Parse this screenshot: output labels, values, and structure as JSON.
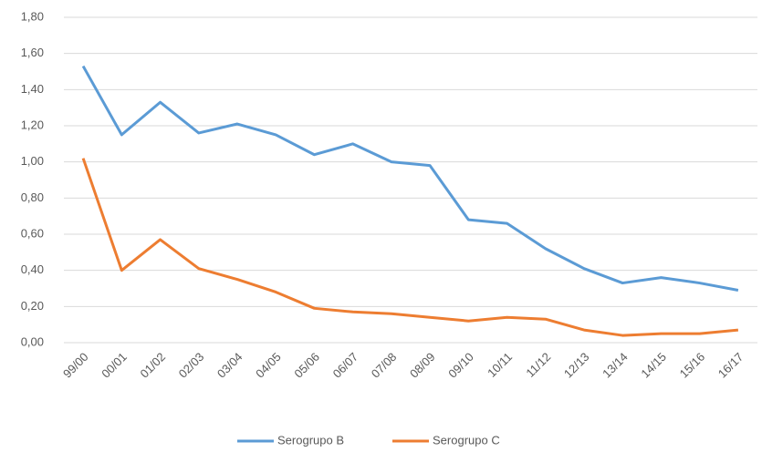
{
  "chart_data": {
    "type": "line",
    "categories": [
      "99/00",
      "00/01",
      "01/02",
      "02/03",
      "03/04",
      "04/05",
      "05/06",
      "06/07",
      "07/08",
      "08/09",
      "09/10",
      "10/11",
      "11/12",
      "12/13",
      "13/14",
      "14/15",
      "15/16",
      "16/17"
    ],
    "series": [
      {
        "name": "Serogrupo B",
        "color": "#5b9bd5",
        "values": [
          1.53,
          1.15,
          1.33,
          1.16,
          1.21,
          1.15,
          1.04,
          1.1,
          1.0,
          0.98,
          0.68,
          0.66,
          0.52,
          0.41,
          0.33,
          0.36,
          0.33,
          0.29
        ]
      },
      {
        "name": "Serogrupo C",
        "color": "#ed7d31",
        "values": [
          1.02,
          0.4,
          0.57,
          0.41,
          0.35,
          0.28,
          0.19,
          0.17,
          0.16,
          0.14,
          0.12,
          0.14,
          0.13,
          0.07,
          0.04,
          0.05,
          0.05,
          0.07
        ]
      }
    ],
    "ylim": [
      0,
      1.8
    ],
    "yticks": [
      {
        "value": 0,
        "label": "0,00"
      },
      {
        "value": 0.2,
        "label": "0,20"
      },
      {
        "value": 0.4,
        "label": "0,40"
      },
      {
        "value": 0.6,
        "label": "0,60"
      },
      {
        "value": 0.8,
        "label": "0,80"
      },
      {
        "value": 1.0,
        "label": "1,00"
      },
      {
        "value": 1.2,
        "label": "1,20"
      },
      {
        "value": 1.4,
        "label": "1,40"
      },
      {
        "value": 1.6,
        "label": "1,60"
      },
      {
        "value": 1.8,
        "label": "1,80"
      }
    ],
    "grid": true
  }
}
